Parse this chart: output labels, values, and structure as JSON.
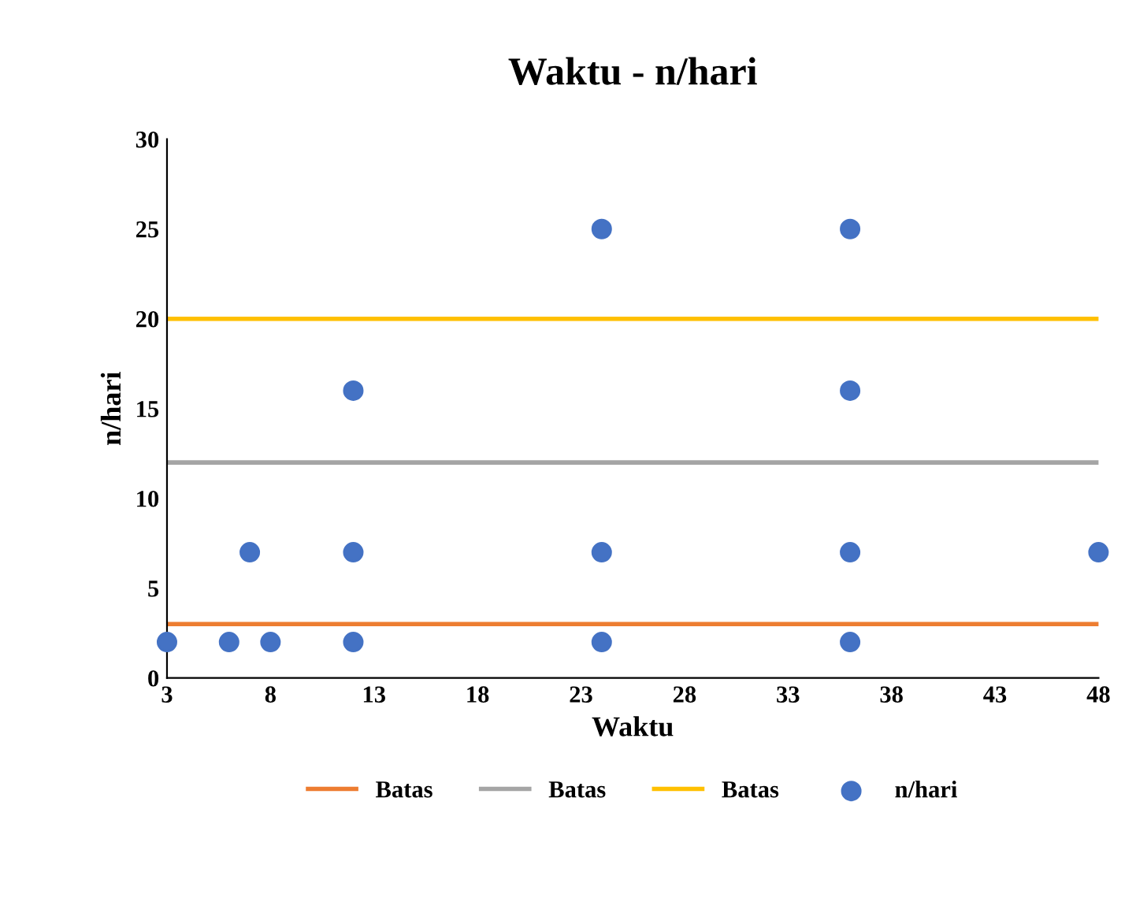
{
  "chart_data": {
    "type": "scatter",
    "title": "Waktu - n/hari",
    "xlabel": "Waktu",
    "ylabel": "n/hari",
    "xlim": [
      3,
      48
    ],
    "xticks": [
      3,
      8,
      13,
      18,
      23,
      28,
      33,
      38,
      43,
      48
    ],
    "ylim": [
      0,
      30
    ],
    "yticks": [
      0,
      5,
      10,
      15,
      20,
      25,
      30
    ],
    "grid": false,
    "legend": "bottom",
    "marker": "circle",
    "series": [
      {
        "name": "Batas",
        "type": "line",
        "color": "#ed7d31",
        "x": [
          3,
          48
        ],
        "values": [
          3,
          3
        ],
        "line_style": "solid",
        "marker": "none"
      },
      {
        "name": "Batas",
        "type": "line",
        "color": "#a5a5a5",
        "x": [
          3,
          48
        ],
        "values": [
          12,
          12
        ],
        "line_style": "solid",
        "marker": "none"
      },
      {
        "name": "Batas",
        "type": "line",
        "color": "#ffc000",
        "x": [
          3,
          48
        ],
        "values": [
          20,
          20
        ],
        "line_style": "solid",
        "marker": "none"
      },
      {
        "name": "n/hari",
        "color": "#4472c4",
        "x": [
          3,
          6,
          7,
          8,
          12,
          12,
          12,
          24,
          24,
          24,
          36,
          36,
          36,
          36,
          48
        ],
        "values": [
          2,
          2,
          7,
          2,
          16,
          7,
          2,
          25,
          7,
          2,
          25,
          16,
          7,
          2,
          7
        ]
      }
    ]
  }
}
